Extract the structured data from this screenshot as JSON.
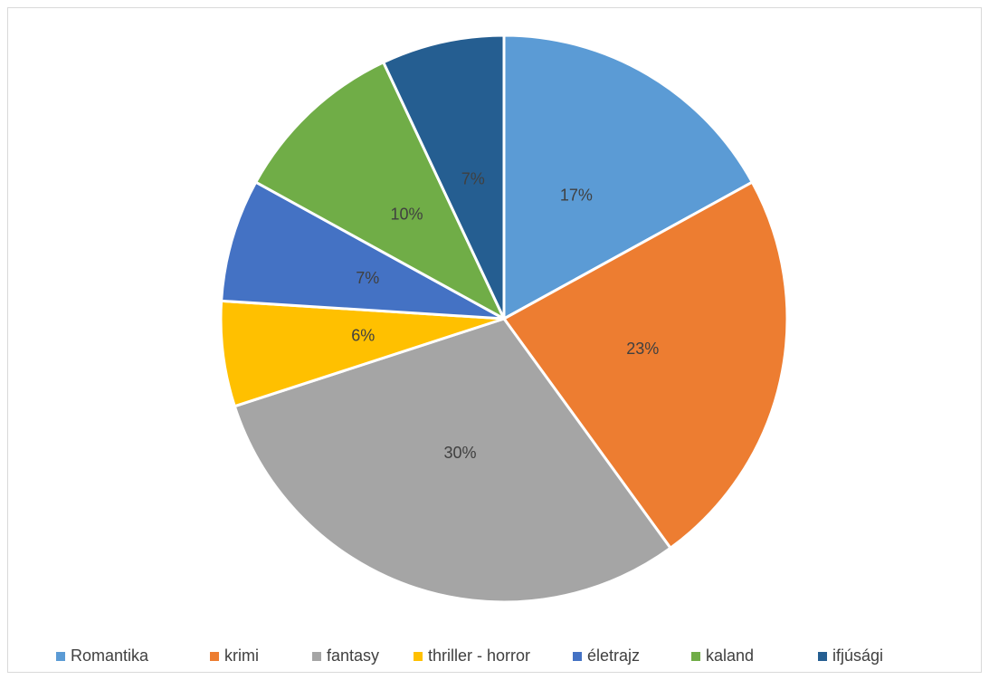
{
  "chart_data": {
    "type": "pie",
    "categories": [
      "Romantika",
      "krimi",
      "fantasy",
      "thriller - horror",
      "életrajz",
      "kaland",
      "ifjúsági"
    ],
    "values": [
      17,
      23,
      30,
      6,
      7,
      10,
      7
    ],
    "value_labels": [
      "17%",
      "23%",
      "30%",
      "6%",
      "7%",
      "10%",
      "7%"
    ],
    "colors": [
      "#5b9bd5",
      "#ed7d31",
      "#a5a5a5",
      "#ffc000",
      "#4472c4",
      "#70ad47",
      "#255e91"
    ],
    "legend": "bottom"
  }
}
